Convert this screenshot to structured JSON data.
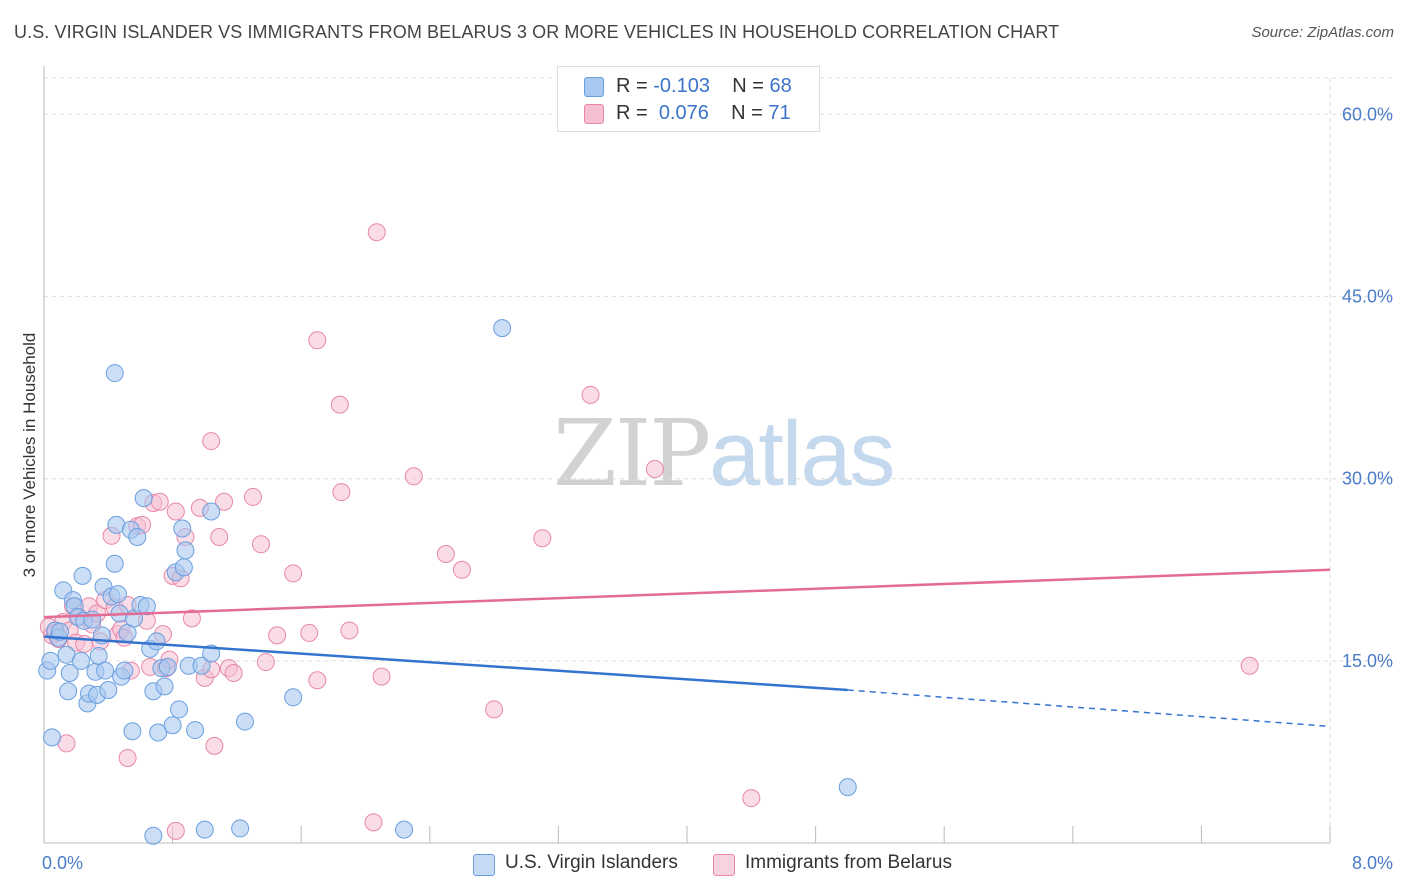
{
  "header": {
    "title": "U.S. VIRGIN ISLANDER VS IMMIGRANTS FROM BELARUS 3 OR MORE VEHICLES IN HOUSEHOLD CORRELATION CHART",
    "source": "Source: ZipAtlas.com"
  },
  "watermark": {
    "zip": "ZIP",
    "atlas": "atlas"
  },
  "legend": {
    "blue": {
      "r_label": "R = ",
      "r_value": "-0.103",
      "n_label": "N = ",
      "n_value": "68"
    },
    "pink": {
      "r_label": "R = ",
      "r_value": "0.076",
      "n_label": "N = ",
      "n_value": "71"
    }
  },
  "colors": {
    "blue_fill": "#a9c8ef",
    "blue_stroke": "#6a9fe0",
    "blue_line": "#3474d0",
    "pink_fill": "#f6c0d2",
    "pink_stroke": "#e887a8",
    "pink_line": "#e36b95",
    "axis_text": "#4a7cc9",
    "grid": "#dedede"
  },
  "chart_data": {
    "type": "scatter",
    "title": "U.S. VIRGIN ISLANDER VS IMMIGRANTS FROM BELARUS 3 OR MORE VEHICLES IN HOUSEHOLD CORRELATION CHART",
    "xlabel": "",
    "ylabel": "3 or more Vehicles in Household",
    "xlim": [
      0,
      8
    ],
    "ylim": [
      0,
      63
    ],
    "x_tick_labels": [
      "0.0%",
      "8.0%"
    ],
    "y_ticks": [
      15,
      30,
      45,
      60
    ],
    "y_tick_labels": [
      "15.0%",
      "30.0%",
      "45.0%",
      "60.0%"
    ],
    "grid": true,
    "legend_position": "top-center",
    "series": [
      {
        "name": "U.S. Virgin Islanders",
        "color": "#a9c8ef",
        "trend": {
          "x0": 0,
          "y0": 17.0,
          "x1": 5.0,
          "y1": 12.6,
          "dashed_to_x": 8.0,
          "dashed_to_y": 9.6
        },
        "points": [
          [
            0.02,
            14.2
          ],
          [
            0.04,
            15.0
          ],
          [
            0.05,
            8.7
          ],
          [
            0.07,
            17.5
          ],
          [
            0.09,
            16.9
          ],
          [
            0.1,
            17.4
          ],
          [
            0.12,
            20.8
          ],
          [
            0.14,
            15.5
          ],
          [
            0.15,
            12.5
          ],
          [
            0.16,
            14.0
          ],
          [
            0.18,
            20.0
          ],
          [
            0.19,
            19.5
          ],
          [
            0.21,
            18.6
          ],
          [
            0.23,
            15.0
          ],
          [
            0.24,
            22.0
          ],
          [
            0.25,
            18.3
          ],
          [
            0.27,
            11.5
          ],
          [
            0.28,
            12.3
          ],
          [
            0.3,
            18.4
          ],
          [
            0.32,
            14.1
          ],
          [
            0.33,
            12.2
          ],
          [
            0.34,
            15.4
          ],
          [
            0.36,
            17.1
          ],
          [
            0.37,
            21.1
          ],
          [
            0.38,
            14.2
          ],
          [
            0.4,
            12.6
          ],
          [
            0.42,
            20.3
          ],
          [
            0.44,
            23.0
          ],
          [
            0.45,
            26.2
          ],
          [
            0.46,
            20.5
          ],
          [
            0.47,
            18.9
          ],
          [
            0.48,
            13.7
          ],
          [
            0.5,
            14.2
          ],
          [
            0.52,
            17.3
          ],
          [
            0.54,
            25.8
          ],
          [
            0.55,
            9.2
          ],
          [
            0.56,
            18.5
          ],
          [
            0.58,
            25.2
          ],
          [
            0.6,
            19.6
          ],
          [
            0.62,
            28.4
          ],
          [
            0.64,
            19.5
          ],
          [
            0.66,
            16.0
          ],
          [
            0.68,
            12.5
          ],
          [
            0.7,
            16.6
          ],
          [
            0.71,
            9.1
          ],
          [
            0.73,
            14.4
          ],
          [
            0.75,
            12.9
          ],
          [
            0.77,
            14.5
          ],
          [
            0.8,
            9.7
          ],
          [
            0.82,
            22.3
          ],
          [
            0.84,
            11.0
          ],
          [
            0.86,
            25.9
          ],
          [
            0.87,
            22.7
          ],
          [
            0.88,
            24.1
          ],
          [
            0.9,
            14.6
          ],
          [
            0.94,
            9.3
          ],
          [
            0.98,
            14.6
          ],
          [
            1.04,
            27.3
          ],
          [
            1.04,
            15.6
          ],
          [
            1.25,
            10.0
          ],
          [
            1.22,
            1.2
          ],
          [
            1.55,
            12.0
          ],
          [
            2.85,
            42.4
          ],
          [
            0.44,
            38.7
          ],
          [
            5.0,
            4.6
          ],
          [
            0.68,
            0.6
          ],
          [
            1.0,
            1.1
          ],
          [
            2.24,
            1.1
          ]
        ]
      },
      {
        "name": "Immigrants from Belarus",
        "color": "#f6c0d2",
        "trend": {
          "x0": 0,
          "y0": 18.6,
          "x1": 8.0,
          "y1": 22.5
        },
        "points": [
          [
            0.03,
            17.8
          ],
          [
            0.05,
            17.1
          ],
          [
            0.07,
            17.3
          ],
          [
            0.09,
            16.8
          ],
          [
            0.12,
            18.2
          ],
          [
            0.14,
            8.2
          ],
          [
            0.16,
            17.5
          ],
          [
            0.18,
            19.5
          ],
          [
            0.2,
            16.5
          ],
          [
            0.22,
            18.6
          ],
          [
            0.25,
            16.4
          ],
          [
            0.28,
            19.5
          ],
          [
            0.3,
            18.0
          ],
          [
            0.33,
            18.9
          ],
          [
            0.35,
            16.6
          ],
          [
            0.38,
            20.0
          ],
          [
            0.42,
            25.3
          ],
          [
            0.44,
            19.4
          ],
          [
            0.46,
            17.2
          ],
          [
            0.48,
            17.6
          ],
          [
            0.5,
            16.9
          ],
          [
            0.52,
            19.6
          ],
          [
            0.54,
            14.2
          ],
          [
            0.58,
            26.1
          ],
          [
            0.61,
            26.2
          ],
          [
            0.64,
            18.3
          ],
          [
            0.66,
            14.5
          ],
          [
            0.68,
            28.0
          ],
          [
            0.72,
            28.1
          ],
          [
            0.74,
            17.2
          ],
          [
            0.76,
            14.4
          ],
          [
            0.78,
            15.1
          ],
          [
            0.8,
            22.0
          ],
          [
            0.82,
            27.3
          ],
          [
            0.85,
            21.8
          ],
          [
            0.88,
            25.2
          ],
          [
            0.92,
            18.5
          ],
          [
            0.97,
            27.6
          ],
          [
            1.0,
            13.6
          ],
          [
            1.04,
            14.3
          ],
          [
            1.04,
            33.1
          ],
          [
            1.09,
            25.2
          ],
          [
            1.12,
            28.1
          ],
          [
            1.15,
            14.4
          ],
          [
            1.18,
            14.0
          ],
          [
            1.3,
            28.5
          ],
          [
            1.35,
            24.6
          ],
          [
            1.38,
            14.9
          ],
          [
            1.45,
            17.1
          ],
          [
            1.55,
            22.2
          ],
          [
            1.65,
            17.3
          ],
          [
            1.7,
            13.4
          ],
          [
            1.85,
            28.9
          ],
          [
            1.9,
            17.5
          ],
          [
            2.1,
            13.7
          ],
          [
            2.3,
            30.2
          ],
          [
            2.5,
            23.8
          ],
          [
            2.6,
            22.5
          ],
          [
            2.8,
            11.0
          ],
          [
            3.1,
            25.1
          ],
          [
            3.4,
            36.9
          ],
          [
            3.8,
            30.8
          ],
          [
            4.4,
            3.7
          ],
          [
            7.5,
            14.6
          ],
          [
            1.7,
            41.4
          ],
          [
            1.84,
            36.1
          ],
          [
            2.07,
            50.3
          ],
          [
            1.06,
            8.0
          ],
          [
            0.82,
            1.0
          ],
          [
            0.52,
            7.0
          ],
          [
            2.05,
            1.7
          ]
        ]
      }
    ]
  },
  "bottom_legend": {
    "blue_label": "U.S. Virgin Islanders",
    "pink_label": "Immigrants from Belarus"
  }
}
